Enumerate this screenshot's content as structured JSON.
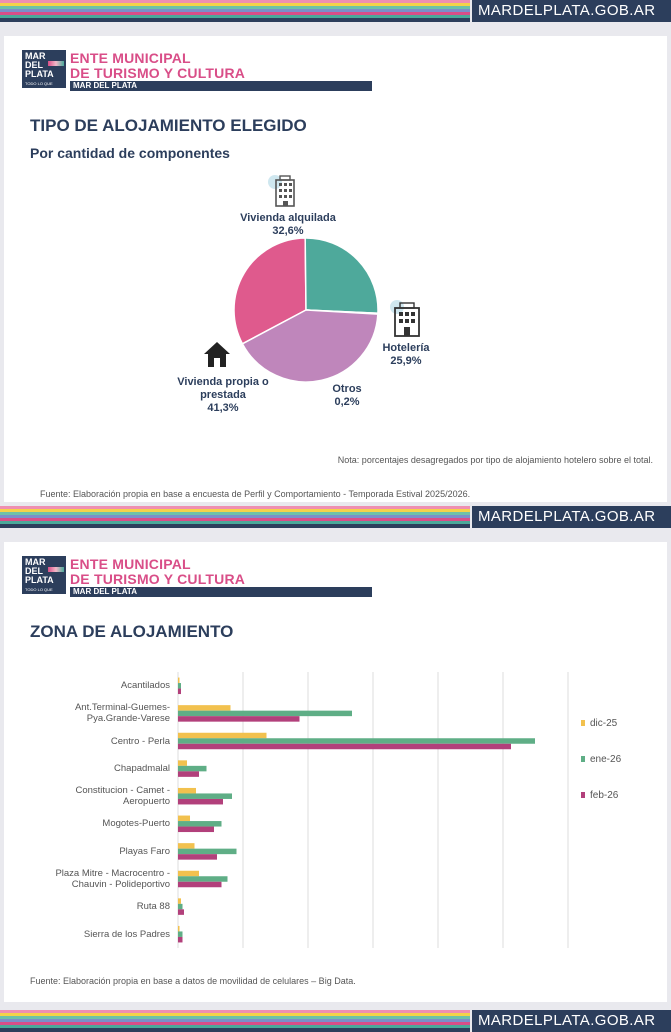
{
  "site_url": "MARDELPLATA.GOB.AR",
  "stripe_colors": [
    "#ef8fb1",
    "#f4d24a",
    "#6fc1a8",
    "#7b8fc9",
    "#d94e88",
    "#4aa99a",
    "#2c3e5c"
  ],
  "logo": {
    "line1": "MAR",
    "line2": "DEL",
    "line3": "PLATA",
    "tagline": "TODO LO QUE"
  },
  "org": {
    "line1": "ENTE MUNICIPAL",
    "line2": "DE TURISMO Y CULTURA",
    "city": "MAR DEL PLATA"
  },
  "slide1": {
    "title": "TIPO DE ALOJAMIENTO ELEGIDO",
    "subtitle": "Por cantidad de componentes",
    "note": "Nota: porcentajes desagregados por tipo de alojamiento hotelero sobre el total.",
    "source": "Fuente: Elaboración propia en base a encuesta de Perfil y Comportamiento - Temporada Estival 2025/2026.",
    "icons": {
      "alquilada": "apartment-building-icon",
      "hoteleria": "hotel-icon",
      "propia": "house-icon"
    }
  },
  "slide2": {
    "title": "ZONA DE ALOJAMIENTO",
    "source": "Fuente: Elaboración propia en base a datos de movilidad de celulares – Big Data."
  },
  "chart_data": [
    {
      "type": "pie",
      "title": "TIPO DE ALOJAMIENTO ELEGIDO",
      "subtitle": "Por cantidad de componentes",
      "slices": [
        {
          "label": "Vivienda alquilada",
          "value": 32.6,
          "display": "32,6%",
          "color": "#df5a8d"
        },
        {
          "label": "Hotelería",
          "value": 25.9,
          "display": "25,9%",
          "color": "#4ea99b"
        },
        {
          "label": "Otros",
          "value": 0.2,
          "display": "0,2%",
          "color": "#e8c85a"
        },
        {
          "label": "Vivienda propia o prestada",
          "value": 41.3,
          "display": "41,3%",
          "color": "#bf86bb"
        }
      ]
    },
    {
      "type": "bar",
      "orientation": "horizontal",
      "title": "ZONA DE ALOJAMIENTO",
      "categories": [
        "Acantilados",
        "Ant.Terminal-Guemes-Pya.Grande-Varese",
        "Centro - Perla",
        "Chapadmalal",
        "Constitucion - Camet - Aeropuerto",
        "Mogotes-Puerto",
        "Playas Faro",
        "Plaza Mitre - Macrocentro - Chauvin - Polideportivo",
        "Ruta 88",
        "Sierra de los Padres"
      ],
      "category_lines": [
        [
          "Acantilados"
        ],
        [
          "Ant.Terminal-Guemes-",
          "Pya.Grande-Varese"
        ],
        [
          "Centro - Perla"
        ],
        [
          "Chapadmalal"
        ],
        [
          "Constitucion - Camet -",
          "Aeropuerto"
        ],
        [
          "Mogotes-Puerto"
        ],
        [
          "Playas Faro"
        ],
        [
          "Plaza Mitre - Macrocentro -",
          "Chauvin - Polideportivo"
        ],
        [
          "Ruta 88"
        ],
        [
          "Sierra de los Padres"
        ]
      ],
      "series": [
        {
          "name": "dic-25",
          "color": "#f2c14e",
          "values": [
            0.5,
            17.5,
            29.5,
            3,
            6,
            4,
            5.5,
            7,
            1,
            0.5
          ]
        },
        {
          "name": "ene-26",
          "color": "#5fae86",
          "values": [
            1,
            58,
            119,
            9.5,
            18,
            14.5,
            19.5,
            16.5,
            1.5,
            1.5
          ]
        },
        {
          "name": "feb-26",
          "color": "#b2407b",
          "values": [
            1,
            40.5,
            111,
            7,
            15,
            12,
            13,
            14.5,
            2,
            1.5
          ]
        }
      ],
      "xlim": [
        0,
        130
      ],
      "gridlines": 6,
      "legend_position": "right"
    }
  ]
}
